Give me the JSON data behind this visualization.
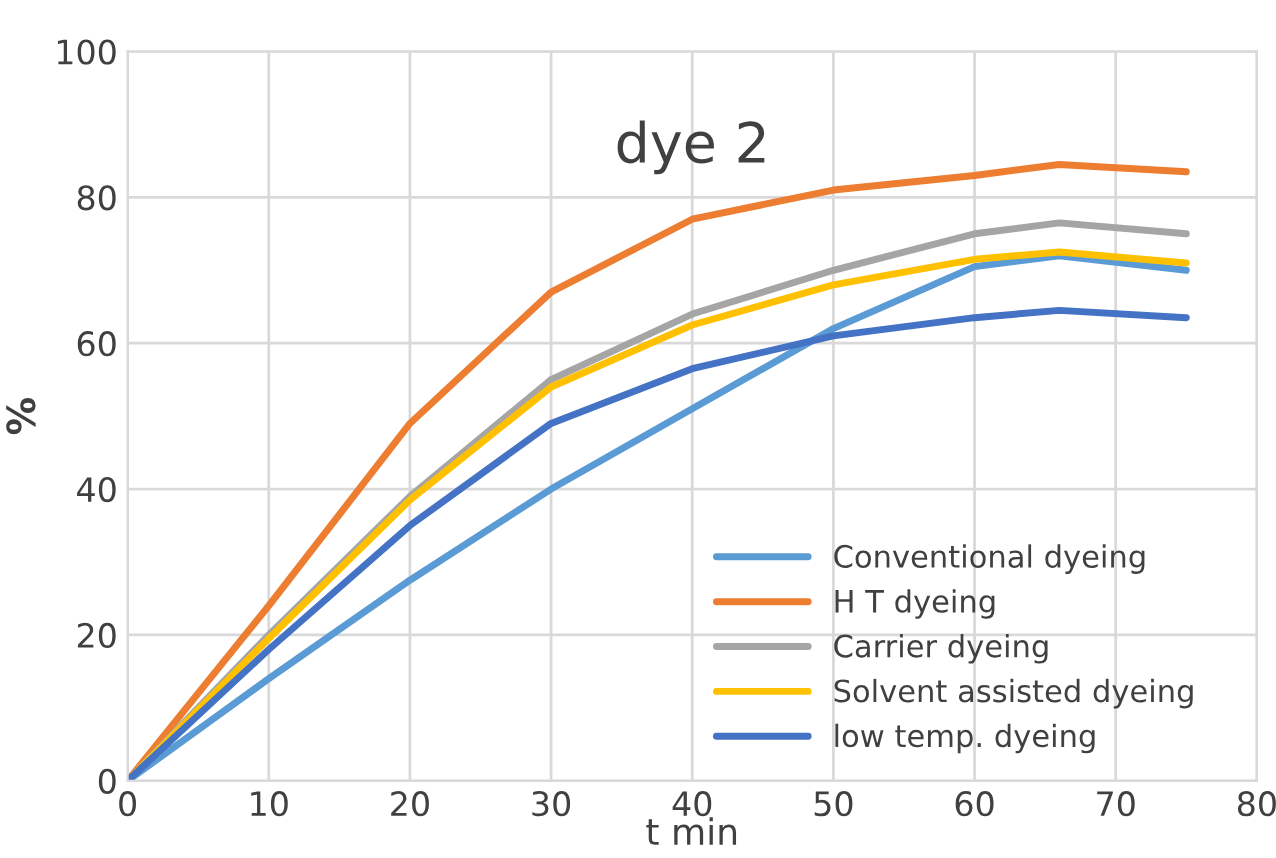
{
  "chart_data": {
    "type": "line",
    "title": "dye 2",
    "xlabel": "t min",
    "ylabel": "%",
    "xlim": [
      0,
      80
    ],
    "xticks": [
      0,
      10,
      20,
      30,
      40,
      50,
      60,
      70,
      80
    ],
    "ylim": [
      0,
      100
    ],
    "yticks": [
      0,
      20,
      40,
      60,
      80,
      100
    ],
    "grid": true,
    "legend": "lower right",
    "marker": "none",
    "line_style": "solid",
    "x": [
      0,
      10,
      20,
      30,
      40,
      50,
      60,
      66,
      75
    ],
    "series": [
      {
        "name": "Conventional dyeing",
        "color": "#5b9bd5",
        "values": [
          0,
          14,
          27.5,
          40,
          51,
          62,
          70.5,
          72,
          70
        ]
      },
      {
        "name": "H T dyeing",
        "color": "#ed7d31",
        "values": [
          0,
          24,
          49,
          67,
          77,
          81,
          83,
          84.5,
          83.5
        ]
      },
      {
        "name": "Carrier dyeing",
        "color": "#a5a5a5",
        "values": [
          0,
          20,
          39,
          55,
          64,
          70,
          75,
          76.5,
          75
        ]
      },
      {
        "name": "Solvent assisted dyeing",
        "color": "#ffc000",
        "values": [
          0,
          19.5,
          38.5,
          54,
          62.5,
          68,
          71.5,
          72.5,
          71
        ]
      },
      {
        "name": "low temp. dyeing",
        "color": "#4472c4",
        "values": [
          0,
          18,
          35,
          49,
          56.5,
          61,
          63.5,
          64.5,
          63.5
        ]
      }
    ]
  }
}
